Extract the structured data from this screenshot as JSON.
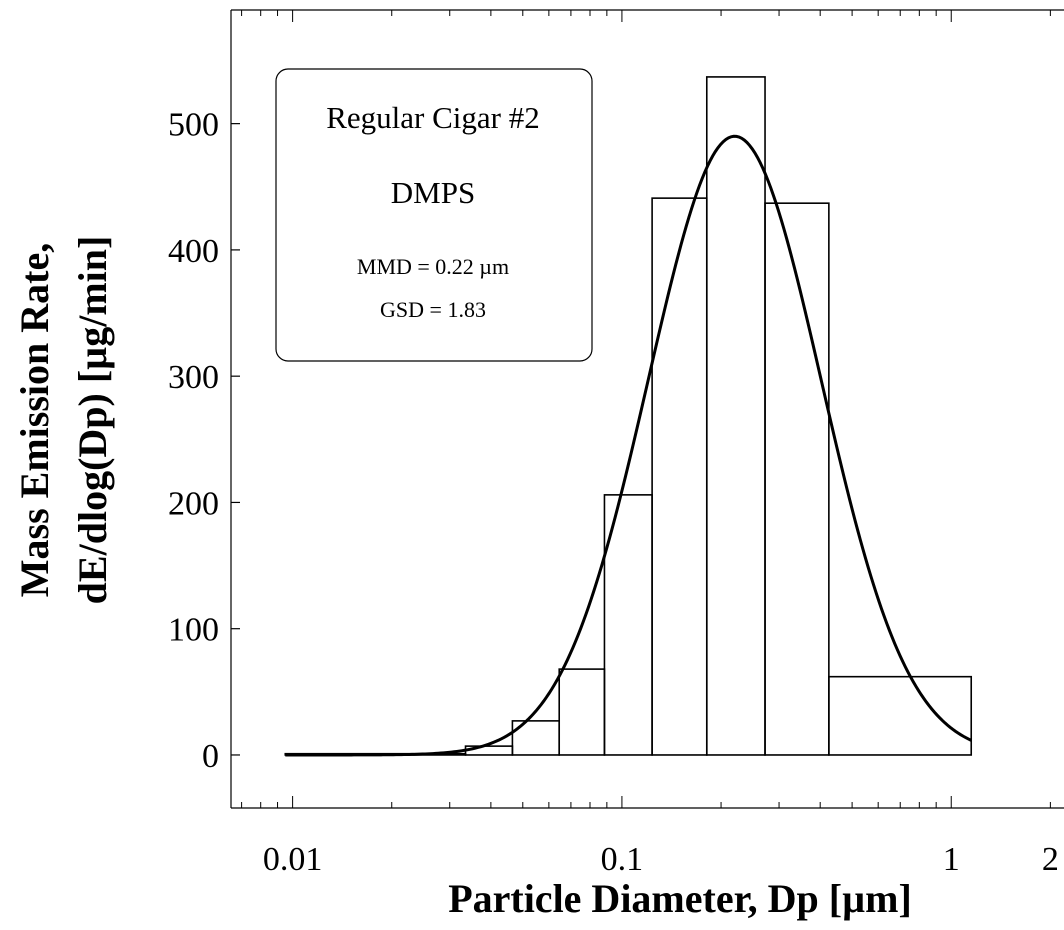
{
  "chart_data": {
    "type": "bar",
    "x_scale": "log",
    "xlim": [
      0.0065,
      2.2
    ],
    "ylim": [
      -42,
      590
    ],
    "xlabel": "Particle Diameter, Dp   [µm]",
    "ylabel_lines": [
      "Mass Emission Rate,",
      "dE/dlog(Dp)   [µg/min]"
    ],
    "x_ticks": [
      {
        "value": 0.01,
        "label": "0.01"
      },
      {
        "value": 0.1,
        "label": "0.1"
      },
      {
        "value": 1,
        "label": "1"
      },
      {
        "value": 2,
        "label": "2"
      }
    ],
    "y_ticks": [
      {
        "value": 0,
        "label": "0"
      },
      {
        "value": 100,
        "label": "100"
      },
      {
        "value": 200,
        "label": "200"
      },
      {
        "value": 300,
        "label": "300"
      },
      {
        "value": 400,
        "label": "400"
      },
      {
        "value": 500,
        "label": "500"
      }
    ],
    "histogram_bins": [
      {
        "x0": 0.0095,
        "x1": 0.0335,
        "value": 1
      },
      {
        "x0": 0.0335,
        "x1": 0.0465,
        "value": 7
      },
      {
        "x0": 0.0465,
        "x1": 0.0645,
        "value": 27
      },
      {
        "x0": 0.0645,
        "x1": 0.0885,
        "value": 68
      },
      {
        "x0": 0.0885,
        "x1": 0.1235,
        "value": 206
      },
      {
        "x0": 0.1235,
        "x1": 0.181,
        "value": 441
      },
      {
        "x0": 0.181,
        "x1": 0.272,
        "value": 537
      },
      {
        "x0": 0.272,
        "x1": 0.425,
        "value": 437
      },
      {
        "x0": 0.425,
        "x1": 1.15,
        "value": 62
      }
    ],
    "fit_curve": {
      "type": "lognormal",
      "mmd": 0.22,
      "gsd": 1.83,
      "peak": 490,
      "x_range": [
        0.0095,
        1.15
      ]
    },
    "annotation": {
      "title": "Regular Cigar #2",
      "subtitle": "DMPS",
      "stats": [
        "MMD = 0.22 µm",
        "GSD = 1.83"
      ]
    },
    "grid": false,
    "legend": "none"
  }
}
